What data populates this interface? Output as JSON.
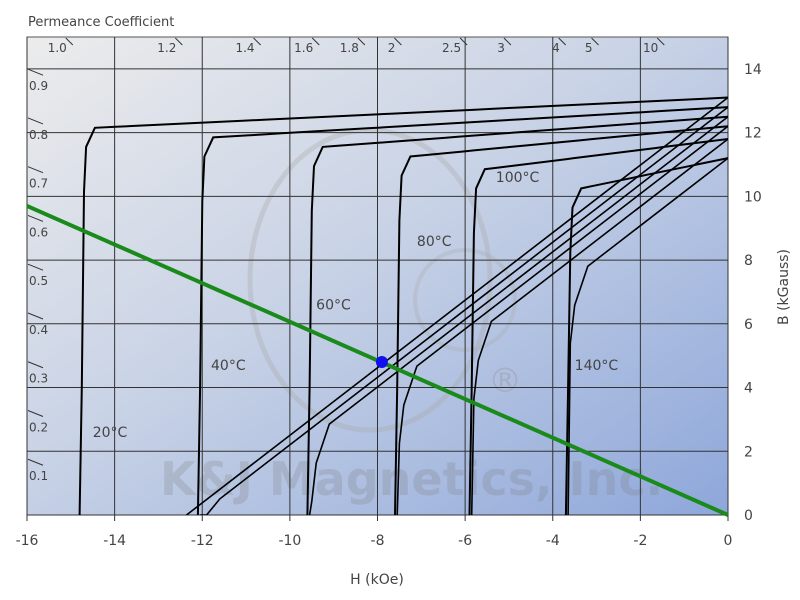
{
  "chart_data": {
    "type": "line",
    "title": "Permeance Coefficient",
    "xlabel": "H (kOe)",
    "ylabel": "B (kGauss)",
    "xlim": [
      -16,
      0
    ],
    "ylim": [
      0,
      15
    ],
    "x_ticks": [
      -16,
      -14,
      -12,
      -10,
      -8,
      -6,
      -4,
      -2,
      0
    ],
    "y_ticks": [
      0,
      2,
      4,
      6,
      8,
      10,
      12,
      14
    ],
    "grid": true,
    "watermark": "K&J Magnetics, Inc.",
    "watermark_mark": "®",
    "permeance_top": [
      "1.0",
      "1.2",
      "1.4",
      "1.6",
      "1.8",
      "2",
      "2.5",
      "3",
      "4",
      "5",
      "10"
    ],
    "permeance_left": [
      "0.9",
      "0.8",
      "0.7",
      "0.6",
      "0.5",
      "0.4",
      "0.3",
      "0.2",
      "0.1"
    ],
    "series": [
      {
        "name": "20°C",
        "Br": 13.1,
        "Hci": -14.7,
        "label_at": [
          -14.5,
          2.6
        ]
      },
      {
        "name": "40°C",
        "Br": 12.8,
        "Hci": -12.0,
        "label_at": [
          -11.8,
          4.7
        ]
      },
      {
        "name": "60°C",
        "Br": 12.5,
        "Hci": -9.5,
        "label_at": [
          -9.4,
          6.6
        ]
      },
      {
        "name": "80°C",
        "Br": 12.2,
        "Hci": -7.5,
        "label_at": [
          -7.1,
          8.6
        ]
      },
      {
        "name": "100°C",
        "Br": 11.8,
        "Hci": -5.8,
        "label_at": [
          -5.3,
          10.6
        ]
      },
      {
        "name": "140°C",
        "Br": 11.2,
        "Hci": -3.6,
        "label_at": [
          -3.5,
          4.7
        ]
      }
    ],
    "load_line": {
      "from": [
        -16,
        9.7
      ],
      "to": [
        0,
        0
      ],
      "color": "#1a8a1a"
    },
    "operating_point": {
      "H": -7.9,
      "B": 4.8,
      "color": "#1010ee"
    }
  }
}
